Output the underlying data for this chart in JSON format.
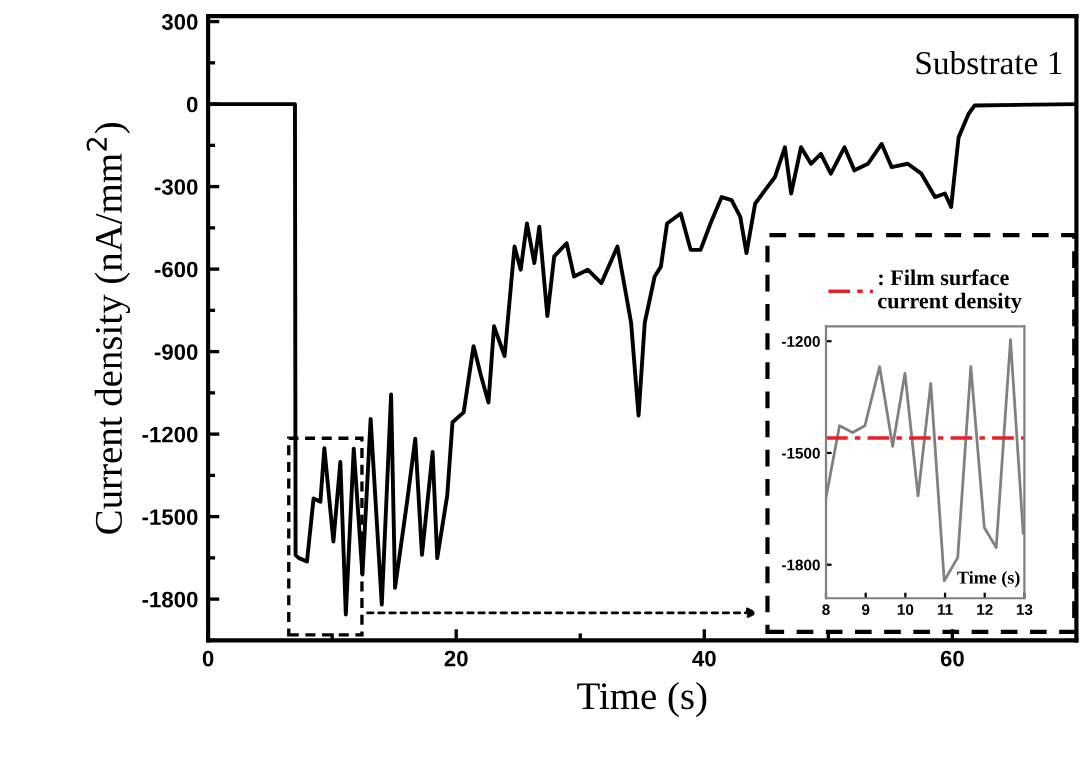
{
  "chart_data": [
    {
      "type": "line",
      "xlabel": "Time (s)",
      "ylabel": "Current density (nA/mm$^{2}$)",
      "xlim": [
        0,
        70
      ],
      "ylim": [
        -1950,
        320
      ],
      "xticks": [
        0,
        20,
        40,
        60
      ],
      "yticks": [
        300,
        0,
        -300,
        -600,
        -900,
        -1200,
        -1500,
        -1800
      ],
      "grid": false,
      "legend": false,
      "marker": "none",
      "line_style": "solid",
      "annotations": [
        "Substrate 1"
      ],
      "series": [
        {
          "color": "#000000",
          "x": [
            0,
            7.0,
            7.05,
            7.32,
            7.97,
            8.5,
            9.05,
            9.37,
            10.1,
            10.66,
            11.1,
            11.74,
            12.44,
            13.1,
            14.0,
            14.75,
            15.07,
            16.04,
            16.7,
            17.24,
            18.1,
            18.47,
            19.28,
            19.7,
            20.6,
            21.16,
            21.4,
            22.0,
            22.6,
            23.05,
            23.9,
            24.7,
            25.2,
            25.7,
            26.3,
            26.7,
            27.35,
            27.9,
            28.9,
            29.5,
            30.6,
            31.7,
            33.0,
            34.1,
            34.7,
            35.2,
            36.0,
            36.5,
            37.0,
            38.1,
            38.9,
            39.7,
            40.5,
            41.4,
            42.2,
            42.9,
            43.4,
            44.1,
            44.9,
            45.7,
            46.5,
            47.0,
            47.8,
            48.6,
            49.4,
            50.2,
            51.3,
            52.1,
            53.2,
            54.3,
            55.1,
            56.4,
            57.5,
            58.6,
            59.4,
            59.9,
            60.5,
            61.3,
            61.8,
            70
          ],
          "values": [
            0,
            0,
            -1640,
            -1651,
            -1663,
            -1434,
            -1446,
            -1251,
            -1591,
            -1301,
            -1856,
            -1253,
            -1711,
            -1145,
            -1820,
            -1056,
            -1759,
            -1446,
            -1217,
            -1639,
            -1265,
            -1651,
            -1422,
            -1157,
            -1121,
            -952,
            -880,
            -988,
            -1085,
            -808,
            -916,
            -518,
            -602,
            -434,
            -578,
            -446,
            -771,
            -554,
            -506,
            -627,
            -602,
            -651,
            -518,
            -795,
            -1133,
            -795,
            -627,
            -591,
            -434,
            -398,
            -530,
            -530,
            -434,
            -338,
            -349,
            -410,
            -542,
            -362,
            -313,
            -265,
            -157,
            -325,
            -157,
            -217,
            -181,
            -253,
            -157,
            -241,
            -217,
            -145,
            -229,
            -217,
            -253,
            -338,
            -325,
            -374,
            -121,
            -36,
            -5,
            0
          ]
        }
      ]
    },
    {
      "type": "line",
      "xlabel": "Time (s)",
      "xlim": [
        8,
        13
      ],
      "ylim": [
        -1890,
        -1160
      ],
      "xticks": [
        8,
        9,
        10,
        11,
        12,
        13
      ],
      "yticks": [
        -1200,
        -1500,
        -1800
      ],
      "grid": false,
      "legend": "top",
      "marker": "none",
      "line_style": "solid",
      "ref_lines": [
        {
          "axis": "y",
          "value": -1460,
          "label": ": Film surface\ncurrent density",
          "color": "#e8202a",
          "line_style": "dashdot"
        }
      ],
      "series": [
        {
          "color": "#808080",
          "x": [
            8.0,
            8.34,
            8.67,
            8.98,
            9.35,
            9.68,
            9.99,
            10.32,
            10.64,
            10.98,
            11.32,
            11.65,
            11.99,
            12.29,
            12.65,
            12.97
          ],
          "values": [
            -1620,
            -1427,
            -1445,
            -1427,
            -1268,
            -1482,
            -1286,
            -1615,
            -1313,
            -1843,
            -1781,
            -1268,
            -1700,
            -1754,
            -1196,
            -1715
          ]
        }
      ]
    }
  ]
}
